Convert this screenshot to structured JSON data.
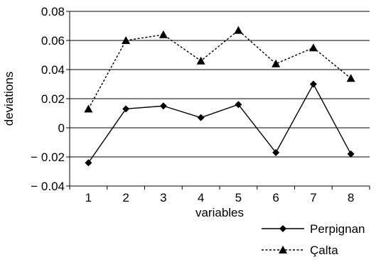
{
  "chart_data": {
    "type": "line",
    "xlabel": "variables",
    "ylabel": "deviations",
    "x_ticks": [
      "1",
      "2",
      "3",
      "4",
      "5",
      "6",
      "7",
      "8"
    ],
    "y_ticks": [
      "0.08",
      "0.06",
      "0.04",
      "0.02",
      "0",
      "− 0.02",
      "− 0.04"
    ],
    "ylim": [
      -0.04,
      0.08
    ],
    "y_tick_values": [
      0.08,
      0.06,
      0.04,
      0.02,
      0,
      -0.02,
      -0.04
    ],
    "grid": "horizontal",
    "legend_position": "bottom-right",
    "series": [
      {
        "name": "Perpignan",
        "marker": "diamond",
        "line_style": "solid",
        "values": [
          -0.024,
          0.013,
          0.015,
          0.007,
          0.016,
          -0.017,
          0.03,
          -0.018
        ]
      },
      {
        "name": "Çalta",
        "marker": "triangle",
        "line_style": "dashed",
        "values": [
          0.013,
          0.06,
          0.064,
          0.046,
          0.067,
          0.044,
          0.055,
          0.034
        ]
      }
    ]
  }
}
